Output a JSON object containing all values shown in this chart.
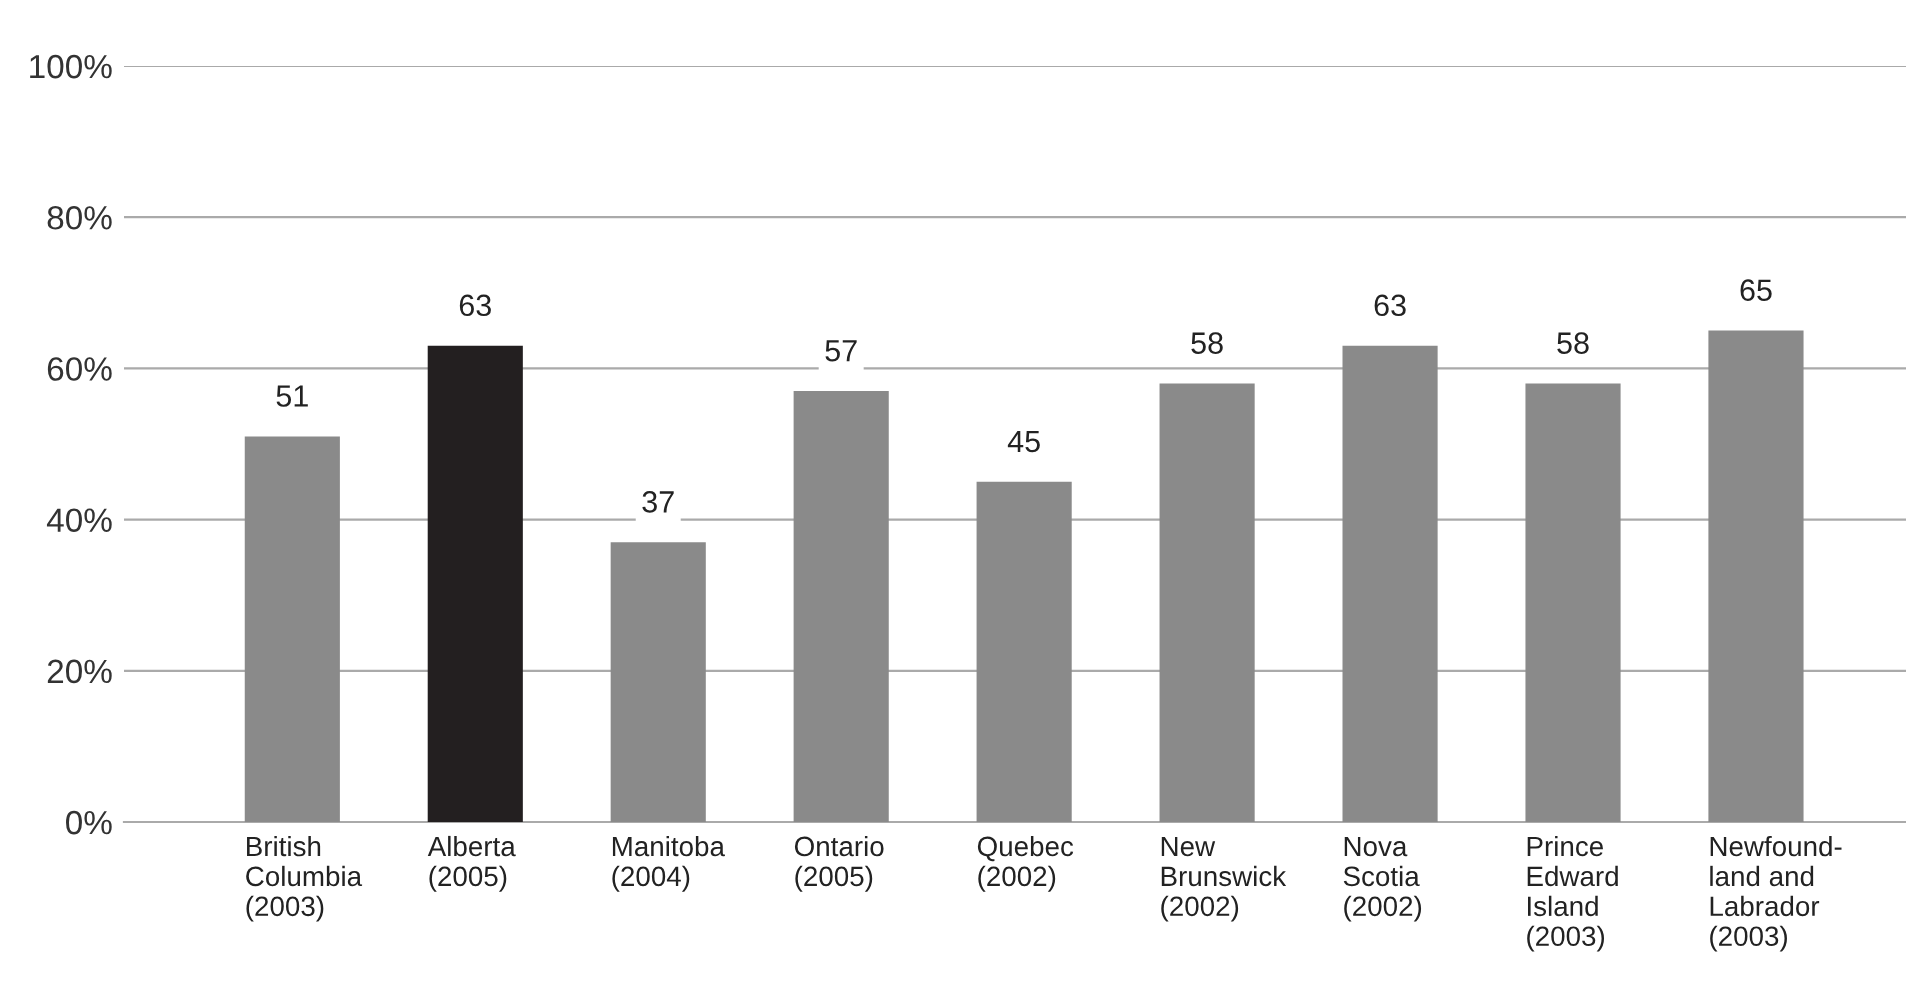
{
  "chart_data": {
    "type": "bar",
    "categories": [
      "British\nColumbia\n(2003)",
      "Alberta\n(2005)",
      "Manitoba\n(2004)",
      "Ontario\n(2005)",
      "Quebec\n(2002)",
      "New\nBrunswick\n(2002)",
      "Nova\nScotia\n(2002)",
      "Prince\nEdward\nIsland\n(2003)",
      "Newfound-\nland and\nLabrador\n(2003)"
    ],
    "values": [
      51,
      63,
      37,
      57,
      45,
      58,
      63,
      58,
      65
    ],
    "colors": [
      "#8a8a8a",
      "#231f20",
      "#8a8a8a",
      "#8a8a8a",
      "#8a8a8a",
      "#8a8a8a",
      "#8a8a8a",
      "#8a8a8a",
      "#8a8a8a"
    ],
    "ylim": [
      0,
      100
    ],
    "yticks": [
      {
        "value": 0,
        "label": "0%"
      },
      {
        "value": 20,
        "label": "20%"
      },
      {
        "value": 40,
        "label": "40%"
      },
      {
        "value": 60,
        "label": "60%"
      },
      {
        "value": 80,
        "label": "80%"
      },
      {
        "value": 100,
        "label": "100%"
      }
    ],
    "grid": "y",
    "data_labels": true
  }
}
